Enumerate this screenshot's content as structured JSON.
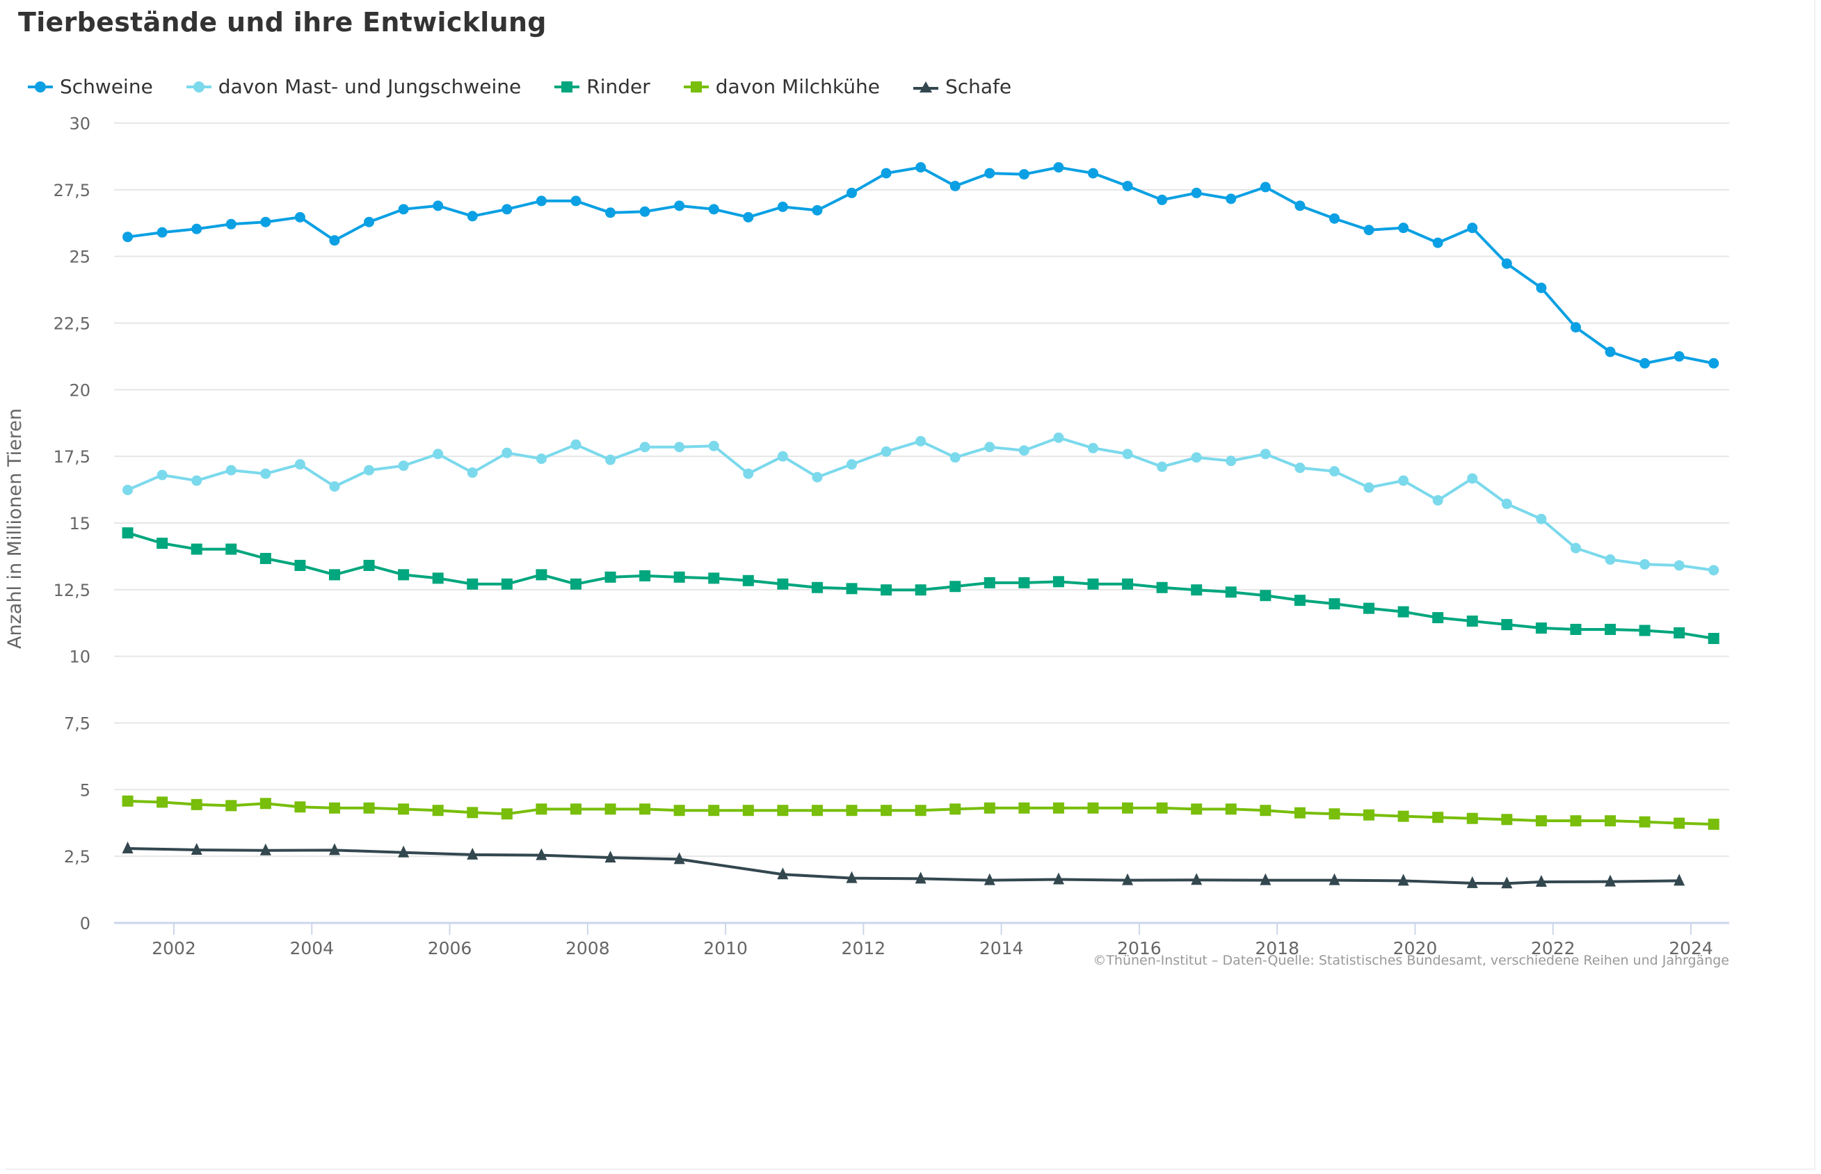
{
  "chart_data": {
    "type": "line",
    "title": "Tierbestände und ihre Entwicklung",
    "xlabel": "",
    "ylabel": "Anzahl in Millionen Tieren",
    "ylim": [
      0,
      30
    ],
    "xlim": [
      2001.2,
      2024.55
    ],
    "yticks": [
      "0",
      "2,5",
      "5",
      "7,5",
      "10",
      "12,5",
      "15",
      "17,5",
      "20",
      "22,5",
      "25",
      "27,5",
      "30"
    ],
    "ytick_values": [
      0,
      2.5,
      5,
      7.5,
      10,
      12.5,
      15,
      17.5,
      20,
      22.5,
      25,
      27.5,
      30
    ],
    "xticks": [
      "2002",
      "2004",
      "2006",
      "2008",
      "2010",
      "2012",
      "2014",
      "2016",
      "2018",
      "2020",
      "2022",
      "2024"
    ],
    "xtick_values": [
      2002,
      2004,
      2006,
      2008,
      2010,
      2012,
      2014,
      2016,
      2018,
      2020,
      2022,
      2024
    ],
    "grid": true,
    "legend_position": "top-left",
    "credit": "©Thünen-Institut – Daten-Quelle: Statistisches Bundesamt, verschiedene Reihen und Jahrgänge",
    "x": [
      2001.33,
      2001.83,
      2002.33,
      2002.83,
      2003.33,
      2003.83,
      2004.33,
      2004.83,
      2005.33,
      2005.83,
      2006.33,
      2006.83,
      2007.33,
      2007.83,
      2008.33,
      2008.83,
      2009.33,
      2009.83,
      2010.33,
      2010.83,
      2011.33,
      2011.83,
      2012.33,
      2012.83,
      2013.33,
      2013.83,
      2014.33,
      2014.83,
      2015.33,
      2015.83,
      2016.33,
      2016.83,
      2017.33,
      2017.83,
      2018.33,
      2018.83,
      2019.33,
      2019.83,
      2020.33,
      2020.83,
      2021.33,
      2021.83,
      2022.33,
      2022.83,
      2023.33,
      2023.83,
      2024.33
    ],
    "series": [
      {
        "name": "Schweine",
        "color": "#0aa0e3",
        "marker": "circle",
        "values": [
          25.73,
          25.9,
          26.03,
          26.21,
          26.29,
          26.47,
          25.6,
          26.29,
          26.77,
          26.9,
          26.51,
          26.77,
          27.08,
          27.08,
          26.64,
          26.68,
          26.9,
          26.77,
          26.47,
          26.86,
          26.73,
          27.38,
          28.12,
          28.34,
          27.64,
          28.12,
          28.08,
          28.34,
          28.12,
          27.64,
          27.12,
          27.38,
          27.16,
          27.6,
          26.9,
          26.42,
          25.99,
          26.07,
          25.51,
          26.07,
          24.73,
          23.82,
          22.34,
          21.42,
          20.99,
          21.25,
          20.99
        ]
      },
      {
        "name": "davon Mast- und Jungschweine",
        "color": "#7bd9ec",
        "marker": "circle",
        "values": [
          16.24,
          16.8,
          16.59,
          16.98,
          16.85,
          17.2,
          16.37,
          16.98,
          17.15,
          17.59,
          16.89,
          17.63,
          17.41,
          17.94,
          17.37,
          17.85,
          17.85,
          17.89,
          16.85,
          17.5,
          16.72,
          17.2,
          17.68,
          18.07,
          17.46,
          17.85,
          17.72,
          18.2,
          17.81,
          17.59,
          17.11,
          17.46,
          17.33,
          17.59,
          17.07,
          16.94,
          16.33,
          16.59,
          15.85,
          16.67,
          15.72,
          15.15,
          14.06,
          13.63,
          13.45,
          13.41,
          13.23
        ]
      },
      {
        "name": "Rinder",
        "color": "#00a67d",
        "marker": "square",
        "values": [
          14.63,
          14.24,
          14.02,
          14.02,
          13.67,
          13.41,
          13.06,
          13.41,
          13.06,
          12.93,
          12.71,
          12.71,
          13.06,
          12.71,
          12.97,
          13.02,
          12.97,
          12.93,
          12.84,
          12.71,
          12.58,
          12.54,
          12.49,
          12.49,
          12.62,
          12.76,
          12.76,
          12.8,
          12.71,
          12.71,
          12.58,
          12.49,
          12.41,
          12.28,
          12.1,
          11.97,
          11.8,
          11.67,
          11.45,
          11.32,
          11.19,
          11.06,
          11.01,
          11.01,
          10.97,
          10.88,
          10.67
        ]
      },
      {
        "name": "davon Milchkühe",
        "color": "#78be0a",
        "marker": "square",
        "values": [
          4.57,
          4.53,
          4.44,
          4.4,
          4.48,
          4.35,
          4.31,
          4.31,
          4.27,
          4.22,
          4.14,
          4.09,
          4.27,
          4.27,
          4.27,
          4.27,
          4.22,
          4.22,
          4.22,
          4.22,
          4.22,
          4.22,
          4.22,
          4.22,
          4.27,
          4.31,
          4.31,
          4.31,
          4.31,
          4.31,
          4.31,
          4.27,
          4.27,
          4.22,
          4.13,
          4.09,
          4.05,
          4.0,
          3.96,
          3.92,
          3.88,
          3.83,
          3.83,
          3.83,
          3.79,
          3.74,
          3.7
        ]
      },
      {
        "name": "Schafe",
        "color": "#33474f",
        "marker": "triangle",
        "x": [
          2001.33,
          2002.33,
          2003.33,
          2004.33,
          2005.33,
          2006.33,
          2007.33,
          2008.33,
          2009.33,
          2010.83,
          2011.83,
          2012.83,
          2013.83,
          2014.83,
          2015.83,
          2016.83,
          2017.83,
          2018.83,
          2019.83,
          2020.83,
          2021.33,
          2021.83,
          2022.83,
          2023.83
        ],
        "values": [
          2.79,
          2.74,
          2.72,
          2.73,
          2.64,
          2.56,
          2.54,
          2.45,
          2.39,
          1.82,
          1.68,
          1.66,
          1.6,
          1.63,
          1.6,
          1.61,
          1.6,
          1.6,
          1.58,
          1.49,
          1.48,
          1.54,
          1.55,
          1.58
        ]
      }
    ]
  }
}
